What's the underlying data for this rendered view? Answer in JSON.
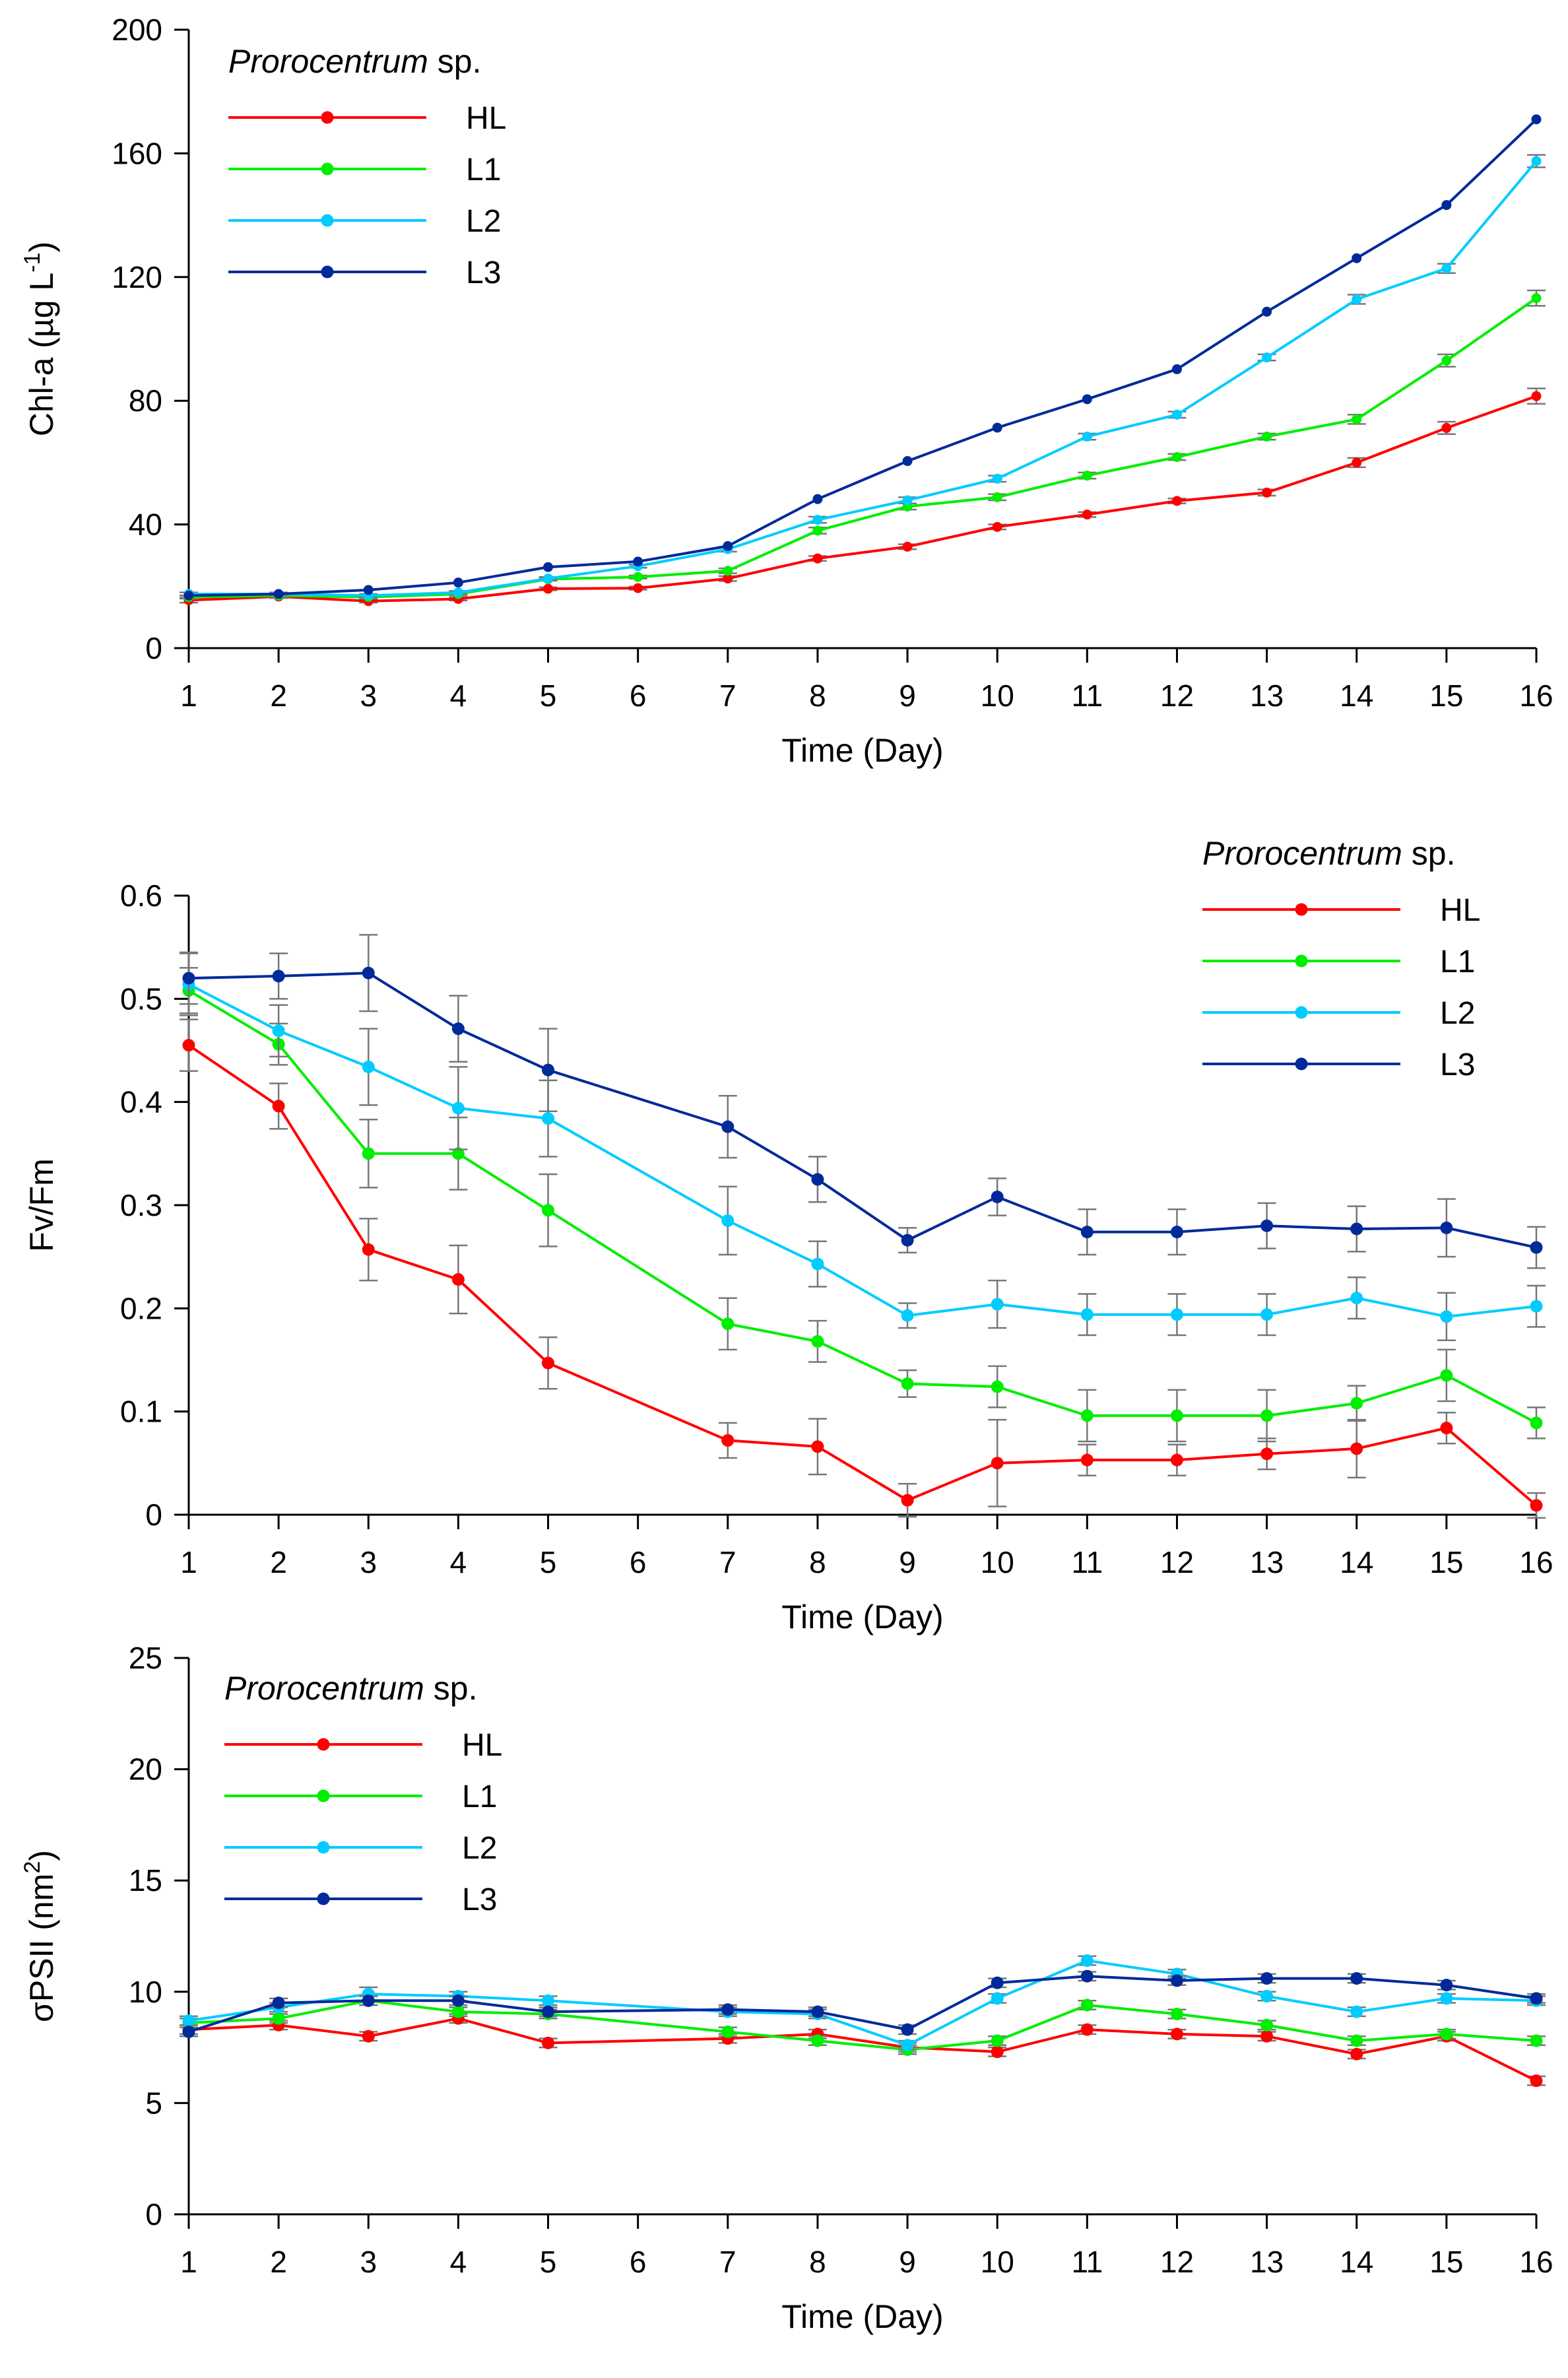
{
  "chart_data": [
    {
      "type": "line",
      "id": "chla",
      "xlabel": "Time (Day)",
      "ylabel_parts": [
        "Chl-a (µg L",
        "-1",
        ")"
      ],
      "ylabel_plain": "Chl-a (µg L-1)",
      "ylim": [
        0,
        200
      ],
      "yticks": [
        0,
        40,
        80,
        120,
        160,
        200
      ],
      "x": [
        1,
        2,
        3,
        4,
        5,
        6,
        7,
        8,
        9,
        10,
        11,
        12,
        13,
        14,
        15,
        16
      ],
      "xtick_labels": [
        "1",
        "2",
        "3",
        "4",
        "5",
        "6",
        "7",
        "8",
        "9",
        "10",
        "11",
        "12",
        "13",
        "14",
        "15",
        "16"
      ],
      "legend": {
        "title_italic": "Prorocentrum",
        "title_rest": " sp.",
        "position": "top-left"
      },
      "series": [
        {
          "name": "HL",
          "color": "#ff0000",
          "values": [
            15.5,
            16.7,
            15.2,
            15.9,
            19.2,
            19.4,
            22.5,
            29.0,
            32.8,
            39.2,
            43.2,
            47.6,
            50.3,
            60.0,
            71.2,
            81.5
          ],
          "errors": [
            0.8,
            0.5,
            0.5,
            0.5,
            0.5,
            0.5,
            0.8,
            0.8,
            0.8,
            0.8,
            0.8,
            0.8,
            1.0,
            1.5,
            2.0,
            2.5
          ]
        },
        {
          "name": "L1",
          "color": "#00ee00",
          "values": [
            16.5,
            17.0,
            16.5,
            17.5,
            22.3,
            23.0,
            25.0,
            38.0,
            45.8,
            48.8,
            55.8,
            61.8,
            68.4,
            74.0,
            93.0,
            113.2
          ],
          "errors": [
            0.5,
            0.5,
            0.5,
            0.5,
            0.5,
            0.5,
            0.8,
            1.0,
            1.0,
            1.0,
            1.0,
            1.0,
            1.0,
            1.5,
            2.0,
            2.5
          ]
        },
        {
          "name": "L2",
          "color": "#00ccff",
          "values": [
            17.5,
            17.5,
            17.0,
            18.0,
            22.5,
            26.5,
            32.0,
            41.5,
            47.8,
            54.8,
            68.4,
            75.5,
            94.0,
            112.8,
            122.8,
            157.5
          ],
          "errors": [
            0.5,
            0.5,
            0.5,
            0.5,
            0.5,
            0.5,
            0.8,
            1.0,
            1.0,
            1.0,
            1.0,
            1.0,
            1.0,
            1.5,
            1.5,
            2.0
          ]
        },
        {
          "name": "L3",
          "color": "#002a99",
          "values": [
            17.0,
            17.5,
            18.8,
            21.2,
            26.2,
            28.0,
            33.0,
            48.2,
            60.5,
            71.3,
            80.5,
            90.2,
            108.8,
            126.1,
            143.3,
            171.0
          ],
          "errors": [
            0,
            0,
            0,
            0,
            0,
            0,
            0,
            0,
            0,
            0,
            0,
            0,
            0,
            0,
            0,
            0
          ]
        }
      ]
    },
    {
      "type": "line",
      "id": "fvfm",
      "xlabel": "Time (Day)",
      "ylabel_plain": "Fv/Fm",
      "ylim": [
        0,
        0.6
      ],
      "yticks": [
        0,
        0.1,
        0.2,
        0.3,
        0.4,
        0.5,
        0.6
      ],
      "ytick_labels": [
        "0",
        "0.1",
        "0.2",
        "0.3",
        "0.4",
        "0.5",
        "0.6"
      ],
      "x": [
        1,
        2,
        3,
        4,
        5,
        7,
        8,
        9,
        10,
        11,
        12,
        13,
        14,
        15,
        16
      ],
      "xticks": [
        1,
        2,
        3,
        4,
        5,
        6,
        7,
        8,
        9,
        10,
        11,
        12,
        13,
        14,
        15,
        16
      ],
      "xtick_labels": [
        "1",
        "2",
        "3",
        "4",
        "5",
        "6",
        "7",
        "8",
        "9",
        "10",
        "11",
        "12",
        "13",
        "14",
        "15",
        "16"
      ],
      "legend": {
        "title_italic": "Prorocentrum",
        "title_rest": " sp.",
        "position": "top-right"
      },
      "series": [
        {
          "name": "HL",
          "color": "#ff0000",
          "values": [
            0.455,
            0.396,
            0.257,
            0.228,
            0.147,
            0.072,
            0.066,
            0.014,
            0.05,
            0.053,
            0.053,
            0.059,
            0.064,
            0.084,
            0.009
          ],
          "errors": [
            0.025,
            0.022,
            0.03,
            0.033,
            0.025,
            0.017,
            0.027,
            0.016,
            0.042,
            0.015,
            0.015,
            0.015,
            0.028,
            0.015,
            0.012
          ]
        },
        {
          "name": "L1",
          "color": "#00ee00",
          "values": [
            0.508,
            0.456,
            0.35,
            0.35,
            0.295,
            0.185,
            0.168,
            0.127,
            0.124,
            0.096,
            0.096,
            0.096,
            0.108,
            0.135,
            0.089
          ],
          "errors": [
            0.022,
            0.02,
            0.033,
            0.035,
            0.035,
            0.025,
            0.02,
            0.013,
            0.02,
            0.025,
            0.025,
            0.025,
            0.017,
            0.025,
            0.015
          ]
        },
        {
          "name": "L2",
          "color": "#00ccff",
          "values": [
            0.514,
            0.469,
            0.434,
            0.394,
            0.384,
            0.285,
            0.243,
            0.193,
            0.204,
            0.194,
            0.194,
            0.194,
            0.21,
            0.192,
            0.202
          ],
          "errors": [
            0.03,
            0.025,
            0.037,
            0.04,
            0.037,
            0.033,
            0.022,
            0.012,
            0.023,
            0.02,
            0.02,
            0.02,
            0.02,
            0.023,
            0.02
          ]
        },
        {
          "name": "L3",
          "color": "#002a99",
          "values": [
            0.52,
            0.522,
            0.525,
            0.471,
            0.431,
            0.376,
            0.325,
            0.266,
            0.308,
            0.274,
            0.274,
            0.28,
            0.277,
            0.278,
            0.259
          ],
          "errors": [
            0.025,
            0.022,
            0.037,
            0.032,
            0.04,
            0.03,
            0.022,
            0.012,
            0.018,
            0.022,
            0.022,
            0.022,
            0.022,
            0.028,
            0.02
          ]
        }
      ]
    },
    {
      "type": "line",
      "id": "sigma",
      "xlabel": "Time (Day)",
      "ylabel_parts": [
        "σPSII (nm",
        "2",
        ")"
      ],
      "ylabel_plain": "σPSII (nm2)",
      "ylim": [
        0,
        25
      ],
      "yticks": [
        0,
        5,
        10,
        15,
        20,
        25
      ],
      "x": [
        1,
        2,
        3,
        4,
        5,
        7,
        8,
        9,
        10,
        11,
        12,
        13,
        14,
        15,
        16
      ],
      "xticks": [
        1,
        2,
        3,
        4,
        5,
        6,
        7,
        8,
        9,
        10,
        11,
        12,
        13,
        14,
        15,
        16
      ],
      "xtick_labels": [
        "1",
        "2",
        "3",
        "4",
        "5",
        "6",
        "7",
        "8",
        "9",
        "10",
        "11",
        "12",
        "13",
        "14",
        "15",
        "16"
      ],
      "legend": {
        "title_italic": "Prorocentrum",
        "title_rest": " sp.",
        "position": "top-left"
      },
      "series": [
        {
          "name": "HL",
          "color": "#ff0000",
          "values": [
            8.3,
            8.5,
            8.0,
            8.8,
            7.7,
            7.9,
            8.1,
            7.5,
            7.3,
            8.3,
            8.1,
            8.0,
            7.2,
            8.0,
            6.0
          ],
          "errors": [
            0.2,
            0.2,
            0.2,
            0.2,
            0.2,
            0.2,
            0.2,
            0.2,
            0.2,
            0.2,
            0.2,
            0.2,
            0.2,
            0.2,
            0.2
          ]
        },
        {
          "name": "L1",
          "color": "#00ee00",
          "values": [
            8.6,
            8.8,
            9.6,
            9.1,
            9.0,
            8.2,
            7.8,
            7.4,
            7.8,
            9.4,
            9.0,
            8.5,
            7.8,
            8.1,
            7.8
          ],
          "errors": [
            0.2,
            0.2,
            0.2,
            0.2,
            0.2,
            0.2,
            0.2,
            0.2,
            0.2,
            0.2,
            0.2,
            0.2,
            0.2,
            0.2,
            0.2
          ]
        },
        {
          "name": "L2",
          "color": "#00ccff",
          "values": [
            8.7,
            9.3,
            9.9,
            9.8,
            9.6,
            9.1,
            9.0,
            7.6,
            9.7,
            11.4,
            10.8,
            9.8,
            9.1,
            9.7,
            9.6
          ],
          "errors": [
            0.2,
            0.2,
            0.3,
            0.2,
            0.2,
            0.2,
            0.2,
            0.2,
            0.2,
            0.2,
            0.2,
            0.2,
            0.2,
            0.2,
            0.2
          ]
        },
        {
          "name": "L3",
          "color": "#002a99",
          "values": [
            8.2,
            9.5,
            9.6,
            9.6,
            9.1,
            9.2,
            9.1,
            8.3,
            10.4,
            10.7,
            10.5,
            10.6,
            10.6,
            10.3,
            9.7
          ],
          "errors": [
            0.2,
            0.2,
            0.2,
            0.2,
            0.2,
            0.2,
            0.2,
            0.2,
            0.2,
            0.2,
            0.2,
            0.2,
            0.2,
            0.2,
            0.2
          ]
        }
      ]
    }
  ]
}
